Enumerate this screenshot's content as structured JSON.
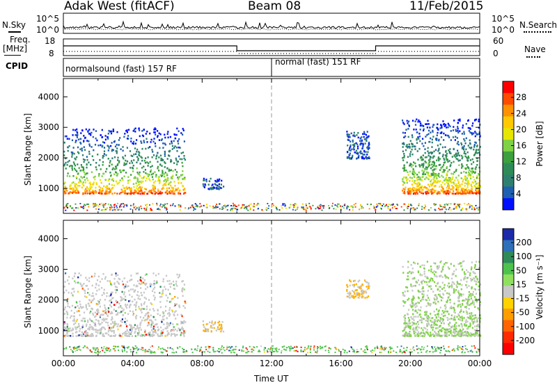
{
  "header": {
    "station": "Adak West (fitACF)",
    "beam": "Beam 08",
    "date": "11/Feb/2015"
  },
  "left_labels": {
    "nsky": "N.Sky",
    "freq": "Freq.",
    "freq_unit": "[MHz]",
    "cpid": "CPID"
  },
  "right_labels": {
    "nsearch": "N.Search",
    "nave": "Nave"
  },
  "noise_axis": {
    "top": "10^5",
    "bottom": "10^0"
  },
  "freq_axis": {
    "top": "18",
    "bottom": "8"
  },
  "nave_axis": {
    "top": "60",
    "bottom": "0"
  },
  "cpid_labels": {
    "first": "normalsound (fast) 157 RF",
    "second": "normal (fast) 151 RF"
  },
  "power_colorbar": {
    "title": "Power [dB]",
    "ticks": [
      "28",
      "24",
      "20",
      "16",
      "12",
      "8",
      "4"
    ],
    "colors": [
      "#ff0000",
      "#ff4a00",
      "#ff9000",
      "#ffc800",
      "#e6e600",
      "#7fd246",
      "#3ca03c",
      "#2e8b57",
      "#2f7f6f",
      "#1f5fb0",
      "#0010ff"
    ]
  },
  "velocity_colorbar": {
    "title": "Velocity [m s⁻¹]",
    "ticks": [
      "200",
      "100",
      "50",
      "15",
      "-15",
      "-50",
      "-100",
      "-200"
    ],
    "colors": [
      "#1a2aa8",
      "#2d6fb8",
      "#2e8b57",
      "#4dc24d",
      "#90e060",
      "#c8c8c8",
      "#ffd200",
      "#ff9c00",
      "#ff6400",
      "#ff2a00",
      "#ff0000"
    ]
  },
  "chart_data": [
    {
      "type": "heatmap",
      "title": "Power [dB]",
      "xlabel": "",
      "ylabel": "Slant Range [km]",
      "x_ticks": [
        "00:00",
        "04:00",
        "08:00",
        "12:00",
        "16:00",
        "20:00",
        "00:00"
      ],
      "y_ticks": [
        1000,
        2000,
        3000,
        4000
      ],
      "xlim": [
        0,
        24
      ],
      "ylim": [
        180,
        4600
      ],
      "echo_regions": [
        {
          "t_start": 0.0,
          "t_end": 7.0,
          "range_start": 850,
          "range_end": 3000,
          "dominant_power_db": 24
        },
        {
          "t_start": 8.0,
          "t_end": 9.2,
          "range_start": 1000,
          "range_end": 1350,
          "dominant_power_db": 8
        },
        {
          "t_start": 16.3,
          "t_end": 17.6,
          "range_start": 2000,
          "range_end": 2900,
          "dominant_power_db": 6
        },
        {
          "t_start": 19.5,
          "t_end": 24.0,
          "range_start": 850,
          "range_end": 3300,
          "dominant_power_db": 24
        }
      ]
    },
    {
      "type": "heatmap",
      "title": "Velocity [m s⁻¹]",
      "xlabel": "Time UT",
      "ylabel": "Slant Range [km]",
      "x_ticks": [
        "00:00",
        "04:00",
        "08:00",
        "12:00",
        "16:00",
        "20:00",
        "00:00"
      ],
      "y_ticks": [
        1000,
        2000,
        3000,
        4000
      ],
      "xlim": [
        0,
        24
      ],
      "ylim": [
        180,
        4600
      ],
      "echo_regions": [
        {
          "t_start": 0.0,
          "t_end": 7.0,
          "range_start": 850,
          "range_end": 2900,
          "dominant_velocity": 0
        },
        {
          "t_start": 8.0,
          "t_end": 9.2,
          "range_start": 1000,
          "range_end": 1350,
          "dominant_velocity": -50
        },
        {
          "t_start": 16.3,
          "t_end": 17.6,
          "range_start": 2100,
          "range_end": 2700,
          "dominant_velocity": -50
        },
        {
          "t_start": 19.5,
          "t_end": 24.0,
          "range_start": 850,
          "range_end": 3300,
          "dominant_velocity": 20
        }
      ]
    }
  ]
}
